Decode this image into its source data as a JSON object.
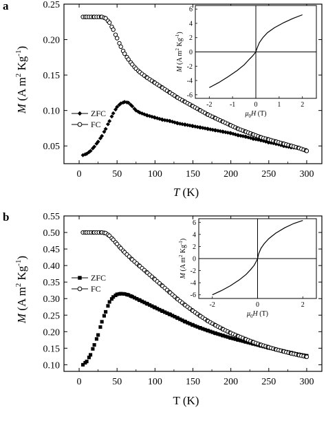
{
  "chart_data": [
    {
      "panel": "a",
      "type": "scatter",
      "xlabel": "T (K)",
      "ylabel": "M (A m2 Kg-1)",
      "xlim": [
        -20,
        320
      ],
      "ylim": [
        0.025,
        0.25
      ],
      "xticks": [
        "0",
        "50",
        "100",
        "150",
        "200",
        "250",
        "300"
      ],
      "yticks": [
        "0.05",
        "0.10",
        "0.15",
        "0.20",
        "0.25"
      ],
      "legend": "middle-left",
      "series": [
        {
          "name": "ZFC",
          "marker": "filled-diamond",
          "x": [
            5,
            10,
            15,
            20,
            25,
            30,
            35,
            40,
            45,
            50,
            55,
            60,
            65,
            70,
            75,
            80,
            90,
            100,
            110,
            120,
            130,
            140,
            150,
            160,
            170,
            180,
            190,
            200,
            210,
            220,
            230,
            240,
            250,
            260,
            270,
            280,
            290,
            300
          ],
          "y": [
            0.037,
            0.039,
            0.043,
            0.049,
            0.056,
            0.064,
            0.074,
            0.085,
            0.096,
            0.105,
            0.11,
            0.112,
            0.111,
            0.106,
            0.1,
            0.097,
            0.093,
            0.09,
            0.087,
            0.085,
            0.082,
            0.08,
            0.078,
            0.076,
            0.074,
            0.072,
            0.07,
            0.068,
            0.065,
            0.063,
            0.06,
            0.058,
            0.055,
            0.053,
            0.05,
            0.048,
            0.047,
            0.044
          ]
        },
        {
          "name": "FC",
          "marker": "open-circle",
          "x": [
            5,
            10,
            20,
            30,
            35,
            40,
            45,
            50,
            55,
            60,
            65,
            70,
            75,
            80,
            90,
            100,
            110,
            120,
            130,
            140,
            150,
            160,
            170,
            180,
            190,
            200,
            210,
            220,
            230,
            240,
            250,
            260,
            270,
            280,
            290,
            300
          ],
          "y": [
            0.232,
            0.232,
            0.232,
            0.232,
            0.23,
            0.224,
            0.214,
            0.202,
            0.19,
            0.18,
            0.172,
            0.165,
            0.159,
            0.154,
            0.146,
            0.139,
            0.132,
            0.125,
            0.118,
            0.112,
            0.106,
            0.1,
            0.094,
            0.089,
            0.084,
            0.079,
            0.074,
            0.07,
            0.066,
            0.062,
            0.059,
            0.056,
            0.053,
            0.05,
            0.047,
            0.043
          ]
        }
      ],
      "inset": {
        "type": "line",
        "xlabel": "μ0H (T)",
        "ylabel": "M (A m2 Kg-1)",
        "xlim": [
          -2.6,
          2.6
        ],
        "ylim": [
          -6.5,
          6.5
        ],
        "xticks": [
          "-2",
          "-1",
          "0",
          "1",
          "2"
        ],
        "yticks": [
          "-6",
          "-4",
          "-2",
          "0",
          "2",
          "4",
          "6"
        ],
        "x": [
          -2.0,
          -1.6,
          -1.2,
          -0.8,
          -0.5,
          -0.3,
          -0.15,
          -0.05,
          0,
          0.05,
          0.15,
          0.3,
          0.5,
          0.8,
          1.2,
          1.6,
          2.0
        ],
        "y": [
          -5.0,
          -4.3,
          -3.5,
          -2.6,
          -1.8,
          -1.1,
          -0.6,
          -0.2,
          0,
          0.5,
          1.3,
          2.0,
          2.7,
          3.4,
          4.1,
          4.7,
          5.2
        ]
      }
    },
    {
      "panel": "b",
      "type": "scatter",
      "xlabel": "T (K)",
      "ylabel": "M (A m2 Kg-1)",
      "xlim": [
        -20,
        320
      ],
      "ylim": [
        0.08,
        0.55
      ],
      "xticks": [
        "0",
        "50",
        "100",
        "150",
        "200",
        "250",
        "300"
      ],
      "yticks": [
        "0.10",
        "0.15",
        "0.20",
        "0.25",
        "0.30",
        "0.35",
        "0.40",
        "0.45",
        "0.50",
        "0.55"
      ],
      "legend": "middle-left",
      "series": [
        {
          "name": "ZFC",
          "marker": "filled-square",
          "x": [
            5,
            10,
            15,
            20,
            25,
            30,
            35,
            40,
            45,
            50,
            55,
            60,
            65,
            70,
            80,
            90,
            100,
            110,
            120,
            130,
            140,
            150,
            160,
            170,
            180,
            190,
            200,
            210,
            220,
            230,
            240,
            250,
            260,
            270,
            280,
            290,
            300
          ],
          "y": [
            0.1,
            0.11,
            0.13,
            0.16,
            0.19,
            0.23,
            0.26,
            0.29,
            0.305,
            0.313,
            0.315,
            0.314,
            0.311,
            0.306,
            0.295,
            0.284,
            0.273,
            0.262,
            0.252,
            0.241,
            0.23,
            0.22,
            0.211,
            0.203,
            0.195,
            0.188,
            0.181,
            0.175,
            0.169,
            0.163,
            0.157,
            0.151,
            0.146,
            0.141,
            0.136,
            0.131,
            0.127
          ]
        },
        {
          "name": "FC",
          "marker": "open-circle",
          "x": [
            5,
            10,
            20,
            30,
            35,
            40,
            45,
            50,
            55,
            60,
            70,
            80,
            90,
            100,
            110,
            120,
            130,
            140,
            150,
            160,
            170,
            180,
            190,
            200,
            210,
            220,
            230,
            240,
            250,
            260,
            270,
            280,
            290,
            300
          ],
          "y": [
            0.5,
            0.5,
            0.5,
            0.5,
            0.498,
            0.49,
            0.478,
            0.465,
            0.452,
            0.44,
            0.418,
            0.398,
            0.378,
            0.358,
            0.338,
            0.318,
            0.298,
            0.28,
            0.263,
            0.247,
            0.232,
            0.219,
            0.207,
            0.196,
            0.186,
            0.177,
            0.168,
            0.16,
            0.153,
            0.146,
            0.14,
            0.134,
            0.129,
            0.124
          ]
        }
      ],
      "inset": {
        "type": "line",
        "xlabel": "μ0H (T)",
        "ylabel": "M (A m2 Kg-1)",
        "xlim": [
          -2.6,
          2.6
        ],
        "ylim": [
          -6.6,
          6.6
        ],
        "xticks": [
          "-2",
          "0",
          "2"
        ],
        "yticks": [
          "-6",
          "-4",
          "-2",
          "0",
          "2",
          "4",
          "6"
        ],
        "x": [
          -2.0,
          -1.6,
          -1.2,
          -0.8,
          -0.5,
          -0.3,
          -0.15,
          -0.05,
          0,
          0.05,
          0.15,
          0.3,
          0.5,
          0.8,
          1.2,
          1.6,
          2.0
        ],
        "y": [
          -6.0,
          -5.3,
          -4.5,
          -3.5,
          -2.6,
          -1.8,
          -1.1,
          -0.4,
          0,
          0.8,
          1.7,
          2.5,
          3.3,
          4.2,
          5.1,
          5.8,
          6.3
        ]
      }
    }
  ],
  "panels": [
    {
      "letter": "a",
      "xlabel_italic_T": "T",
      "xlabel_unit": " (K)"
    },
    {
      "letter": "b",
      "xlabel_italic_T": "T",
      "xlabel_unit": " (K)"
    }
  ],
  "ylabel_parts": {
    "M": "M",
    "unit_a": "(A m",
    "sup2": "2",
    "unit_b": " Kg",
    "supm1": "-1",
    "close": ")"
  },
  "inset_xlabel_parts": {
    "mu": "μ",
    "sub0": "0",
    "H": "H",
    "unit": " (T)"
  },
  "legend_labels": {
    "zfc": "ZFC",
    "fc": "FC"
  },
  "colors": {
    "ink": "#000000",
    "background": "#ffffff"
  }
}
